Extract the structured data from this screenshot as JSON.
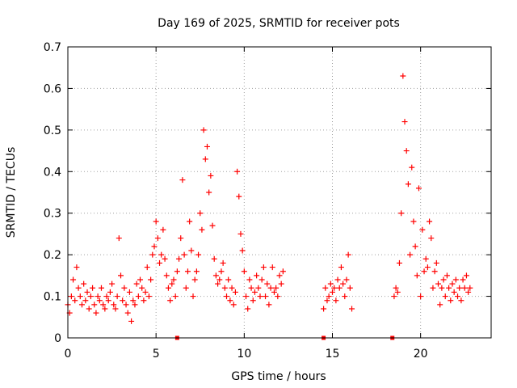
{
  "chart_data": {
    "type": "scatter",
    "title": "Day 169 of 2025, SRMTID for receiver pots",
    "xlabel": "GPS time / hours",
    "ylabel": "SRMTID / TECUs",
    "xlim": [
      0,
      24
    ],
    "ylim": [
      0,
      0.7
    ],
    "x_ticks": [
      0,
      5,
      10,
      15,
      20
    ],
    "x_tick_labels": [
      "0",
      "5",
      "10",
      "15",
      "20"
    ],
    "y_ticks": [
      0,
      0.1,
      0.2,
      0.3,
      0.4,
      0.5,
      0.6,
      0.7
    ],
    "y_tick_labels": [
      "0",
      "0.1",
      "0.2",
      "0.3",
      "0.4",
      "0.5",
      "0.6",
      "0.7"
    ],
    "grid": true,
    "marker": "+",
    "color": "#ff0000",
    "series": [
      {
        "name": "SRMTID",
        "x": [
          0.0,
          0.1,
          0.2,
          0.3,
          0.4,
          0.5,
          0.6,
          0.7,
          0.8,
          0.9,
          1.0,
          1.1,
          1.2,
          1.3,
          1.4,
          1.5,
          1.6,
          1.7,
          1.8,
          1.9,
          2.0,
          2.1,
          2.2,
          2.3,
          2.4,
          2.5,
          2.6,
          2.7,
          2.8,
          2.9,
          3.0,
          3.1,
          3.2,
          3.3,
          3.4,
          3.5,
          3.6,
          3.7,
          3.8,
          3.9,
          4.0,
          4.1,
          4.2,
          4.3,
          4.4,
          4.5,
          4.6,
          4.7,
          4.8,
          4.9,
          5.0,
          5.1,
          5.2,
          5.3,
          5.4,
          5.5,
          5.6,
          5.7,
          5.8,
          5.9,
          6.0,
          6.1,
          6.2,
          6.3,
          6.4,
          6.5,
          6.6,
          6.7,
          6.8,
          6.9,
          7.0,
          7.1,
          7.2,
          7.3,
          7.4,
          7.5,
          7.6,
          7.7,
          7.8,
          7.9,
          8.0,
          8.1,
          8.2,
          8.3,
          8.4,
          8.5,
          8.6,
          8.7,
          8.8,
          8.9,
          9.0,
          9.1,
          9.2,
          9.3,
          9.4,
          9.5,
          9.6,
          9.7,
          9.8,
          9.9,
          10.0,
          10.1,
          10.2,
          10.3,
          10.4,
          10.5,
          10.6,
          10.7,
          10.8,
          10.9,
          11.0,
          11.1,
          11.2,
          11.3,
          11.4,
          11.5,
          11.6,
          11.7,
          11.8,
          11.9,
          12.0,
          12.1,
          12.2,
          14.5,
          14.6,
          14.7,
          14.8,
          14.9,
          15.0,
          15.1,
          15.2,
          15.3,
          15.4,
          15.5,
          15.6,
          15.7,
          15.8,
          15.9,
          16.0,
          16.1,
          18.5,
          18.6,
          18.7,
          18.8,
          18.9,
          19.0,
          19.1,
          19.2,
          19.3,
          19.4,
          19.5,
          19.6,
          19.7,
          19.8,
          19.9,
          20.0,
          20.1,
          20.2,
          20.3,
          20.4,
          20.5,
          20.6,
          20.7,
          20.8,
          20.9,
          21.0,
          21.1,
          21.2,
          21.3,
          21.4,
          21.5,
          21.6,
          21.7,
          21.8,
          21.9,
          22.0,
          22.1,
          22.2,
          22.3,
          22.4,
          22.5,
          22.6,
          22.7,
          22.8
        ],
        "y": [
          0.08,
          0.06,
          0.1,
          0.14,
          0.09,
          0.17,
          0.12,
          0.1,
          0.08,
          0.13,
          0.09,
          0.11,
          0.07,
          0.1,
          0.12,
          0.08,
          0.06,
          0.1,
          0.09,
          0.12,
          0.08,
          0.07,
          0.1,
          0.09,
          0.11,
          0.13,
          0.08,
          0.07,
          0.1,
          0.24,
          0.15,
          0.09,
          0.12,
          0.08,
          0.06,
          0.11,
          0.04,
          0.09,
          0.08,
          0.13,
          0.1,
          0.14,
          0.12,
          0.09,
          0.11,
          0.17,
          0.1,
          0.14,
          0.2,
          0.22,
          0.28,
          0.24,
          0.18,
          0.2,
          0.26,
          0.19,
          0.15,
          0.12,
          0.09,
          0.13,
          0.14,
          0.1,
          0.16,
          0.19,
          0.24,
          0.38,
          0.2,
          0.12,
          0.16,
          0.28,
          0.21,
          0.1,
          0.14,
          0.16,
          0.2,
          0.3,
          0.26,
          0.5,
          0.43,
          0.46,
          0.35,
          0.39,
          0.27,
          0.19,
          0.15,
          0.13,
          0.14,
          0.16,
          0.18,
          0.12,
          0.1,
          0.14,
          0.09,
          0.12,
          0.08,
          0.11,
          0.4,
          0.34,
          0.25,
          0.21,
          0.16,
          0.1,
          0.07,
          0.14,
          0.12,
          0.09,
          0.11,
          0.15,
          0.12,
          0.1,
          0.14,
          0.17,
          0.1,
          0.13,
          0.08,
          0.12,
          0.17,
          0.11,
          0.12,
          0.1,
          0.15,
          0.13,
          0.16,
          0.07,
          0.12,
          0.09,
          0.1,
          0.13,
          0.11,
          0.12,
          0.09,
          0.14,
          0.12,
          0.17,
          0.13,
          0.1,
          0.14,
          0.2,
          0.12,
          0.07,
          0.1,
          0.12,
          0.11,
          0.18,
          0.3,
          0.63,
          0.52,
          0.45,
          0.37,
          0.2,
          0.41,
          0.28,
          0.22,
          0.15,
          0.36,
          0.1,
          0.26,
          0.16,
          0.19,
          0.17,
          0.28,
          0.24,
          0.12,
          0.16,
          0.18,
          0.13,
          0.08,
          0.12,
          0.14,
          0.1,
          0.15,
          0.12,
          0.09,
          0.13,
          0.11,
          0.14,
          0.1,
          0.12,
          0.09,
          0.14,
          0.12,
          0.15,
          0.11,
          0.12
        ],
        "baseline_markers_x": [
          6.2,
          14.5,
          18.4
        ]
      }
    ]
  }
}
